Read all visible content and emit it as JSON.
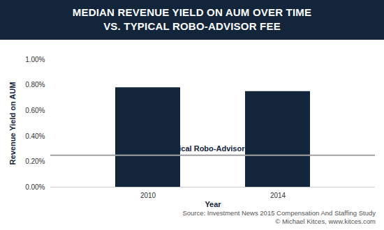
{
  "chart_data": {
    "type": "bar",
    "title": "MEDIAN REVENUE YIELD ON AUM OVER TIME",
    "subtitle": "VS. TYPICAL ROBO-ADVISOR FEE",
    "x_label": "Year",
    "y_label": "Revenue Yield on AUM",
    "categories": [
      "2010",
      "2014"
    ],
    "values": [
      0.78,
      0.75
    ],
    "color": "#13253a",
    "ylim": [
      0,
      1
    ],
    "yticks": [
      {
        "value": 0,
        "label": "0.00%"
      },
      {
        "value": 0.2,
        "label": "0.20%"
      },
      {
        "value": 0.4,
        "label": "0.40%"
      },
      {
        "value": 0.6,
        "label": "0.60%"
      },
      {
        "value": 0.8,
        "label": "0.80%"
      },
      {
        "value": 1,
        "label": "1.00%"
      }
    ],
    "grid": false,
    "reference_line": {
      "value": 0.25,
      "label": "Typical Robo-Advisor Fee"
    },
    "source": "Source: Investment News 2015 Compensation And Staffing Study",
    "credit": "© Michael Kitces, www.kitces.com"
  }
}
